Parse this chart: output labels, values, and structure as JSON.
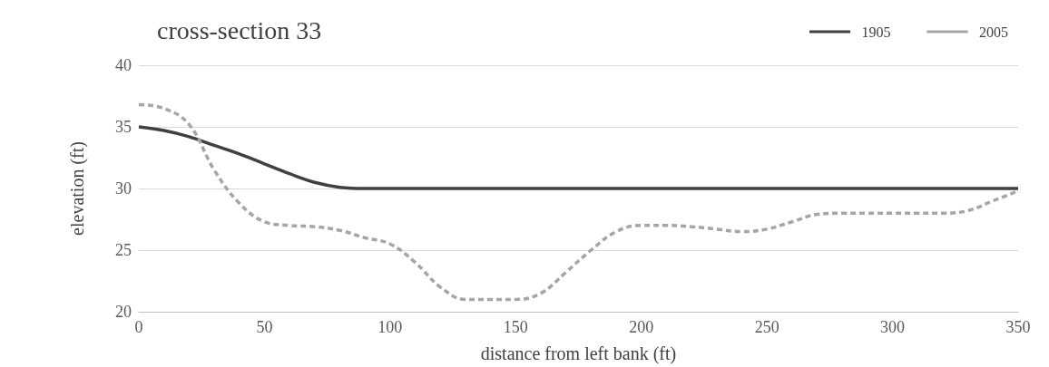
{
  "chart_data": {
    "type": "line",
    "title": "cross-section 33",
    "xlabel": "distance from left bank (ft)",
    "ylabel": "elevation (ft)",
    "xlim": [
      0,
      350
    ],
    "xticks": [
      0,
      50,
      100,
      150,
      200,
      250,
      300,
      350
    ],
    "ylim": [
      20,
      40
    ],
    "yticks": [
      20,
      25,
      30,
      35,
      40
    ],
    "grid": "y",
    "legend": "top right",
    "marker": "none",
    "series": [
      {
        "name": "1905",
        "color": "#404040",
        "line_style": "solid",
        "x": [
          0,
          10,
          20,
          30,
          40,
          50,
          60,
          70,
          80,
          90,
          350
        ],
        "values": [
          35,
          34.7,
          34.2,
          33.5,
          32.8,
          32,
          31.2,
          30.5,
          30.1,
          30,
          30
        ]
      },
      {
        "name": "2005",
        "color": "#a5a5a5",
        "line_style": "dashed",
        "x": [
          0,
          10,
          20,
          30,
          40,
          50,
          60,
          70,
          80,
          90,
          100,
          110,
          120,
          130,
          140,
          150,
          160,
          170,
          180,
          190,
          200,
          210,
          220,
          230,
          240,
          250,
          260,
          270,
          280,
          290,
          300,
          310,
          320,
          330,
          340,
          350
        ],
        "values": [
          36.8,
          36.5,
          35.2,
          31.5,
          28.8,
          27.3,
          27,
          26.9,
          26.6,
          26,
          25.5,
          24,
          22,
          21,
          21,
          21,
          21.5,
          23.2,
          25,
          26.5,
          27,
          27,
          26.9,
          26.7,
          26.5,
          26.7,
          27.3,
          27.9,
          28,
          28,
          28,
          28,
          28,
          28.2,
          29,
          29.8
        ]
      }
    ]
  }
}
